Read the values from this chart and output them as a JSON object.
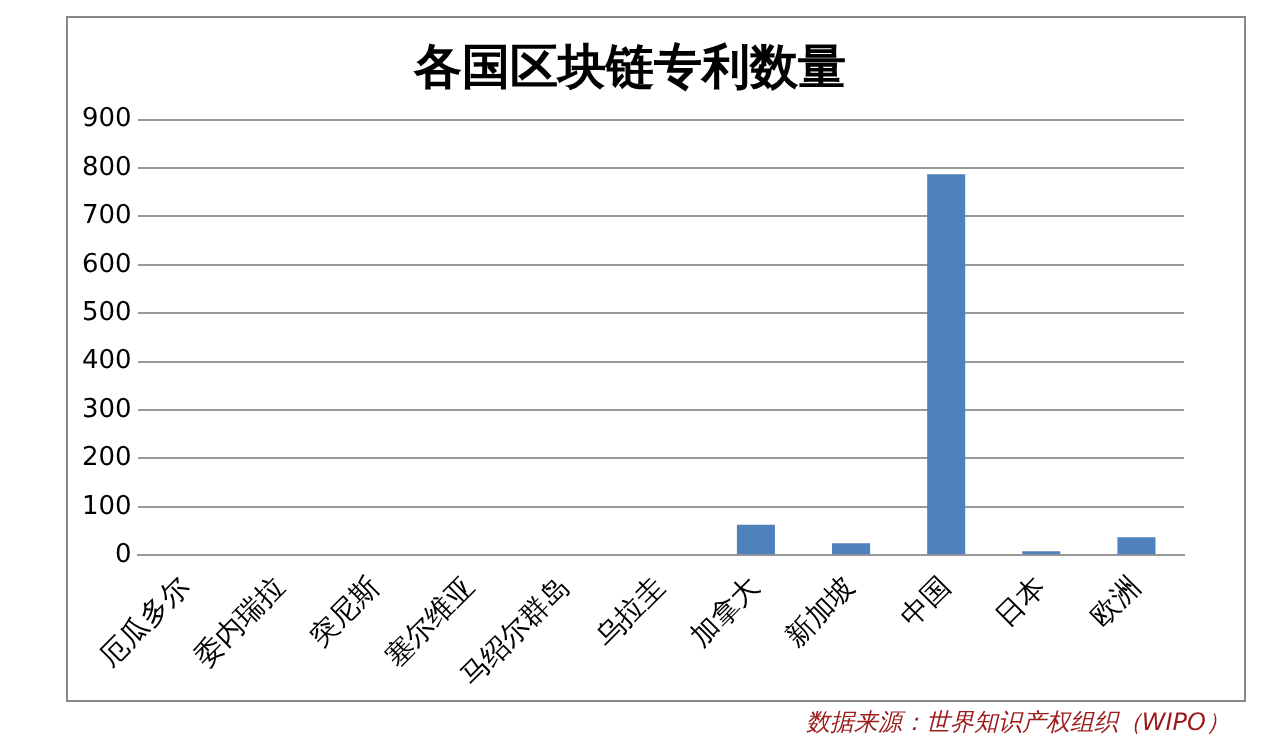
{
  "chart_data": {
    "type": "bar",
    "title": "各国区块链专利数量",
    "categories": [
      "厄瓜多尔",
      "委内瑞拉",
      "突尼斯",
      "塞尔维亚",
      "马绍尔群岛",
      "乌拉圭",
      "加拿大",
      "新加坡",
      "中国",
      "日本",
      "欧洲"
    ],
    "values": [
      0,
      0,
      0,
      0,
      0,
      0,
      63,
      25,
      787,
      8,
      37
    ],
    "color": "#4f81bd",
    "ylim": [
      0,
      900
    ],
    "yticks": [
      0,
      100,
      200,
      300,
      400,
      500,
      600,
      700,
      800,
      900
    ],
    "grid": "y",
    "legend": false,
    "annotations": [
      "数据来源：世界知识产权组织（WIPO）"
    ]
  }
}
